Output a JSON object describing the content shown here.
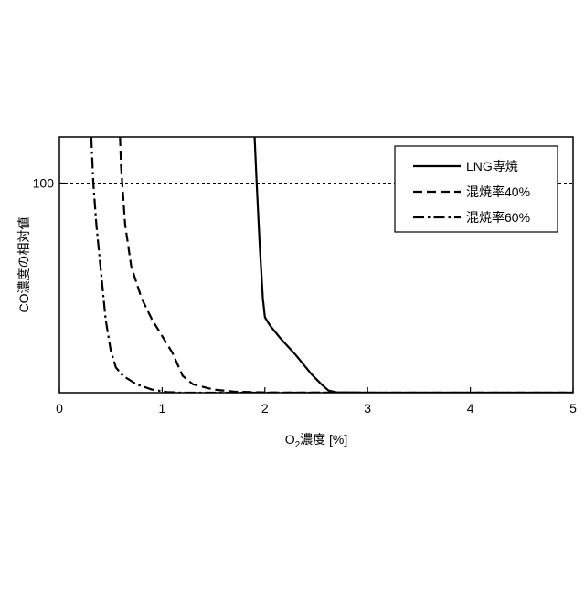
{
  "chart_data": {
    "type": "line",
    "title": "",
    "xlabel": "O₂濃度 [%]",
    "xlabel_parts": {
      "main": "O",
      "sub": "2",
      "rest": "濃度 [%]"
    },
    "ylabel": "CO濃度の相対値",
    "xlim": [
      0,
      5
    ],
    "ylim": [
      0,
      122
    ],
    "x_ticks": [
      0,
      1,
      2,
      3,
      4,
      5
    ],
    "y_ticks": [
      100
    ],
    "reference_line": {
      "y": 100,
      "style": "dotted"
    },
    "grid": false,
    "legend_position": "top-right",
    "series": [
      {
        "name": "LNG専焼",
        "line_style": "solid",
        "points": [
          [
            1.9,
            122
          ],
          [
            1.92,
            100
          ],
          [
            1.95,
            70
          ],
          [
            1.98,
            45
          ],
          [
            2.0,
            36
          ],
          [
            2.05,
            32
          ],
          [
            2.15,
            26
          ],
          [
            2.3,
            18
          ],
          [
            2.45,
            9
          ],
          [
            2.55,
            4
          ],
          [
            2.62,
            1
          ],
          [
            2.7,
            0.2
          ],
          [
            3.0,
            0
          ],
          [
            4.0,
            0
          ],
          [
            5.0,
            0
          ]
        ]
      },
      {
        "name": "混焼率40%",
        "line_style": "dashed",
        "points": [
          [
            0.59,
            122
          ],
          [
            0.6,
            108
          ],
          [
            0.64,
            80
          ],
          [
            0.7,
            60
          ],
          [
            0.8,
            45
          ],
          [
            0.9,
            35
          ],
          [
            1.0,
            27
          ],
          [
            1.1,
            19
          ],
          [
            1.2,
            8
          ],
          [
            1.3,
            4
          ],
          [
            1.5,
            1.5
          ],
          [
            1.7,
            0.5
          ],
          [
            2.0,
            0.1
          ],
          [
            3.0,
            0
          ],
          [
            5.0,
            0
          ]
        ]
      },
      {
        "name": "混焼率60%",
        "line_style": "dashdot",
        "points": [
          [
            0.31,
            122
          ],
          [
            0.33,
            100
          ],
          [
            0.36,
            80
          ],
          [
            0.4,
            60
          ],
          [
            0.45,
            35
          ],
          [
            0.5,
            20
          ],
          [
            0.55,
            12
          ],
          [
            0.62,
            8
          ],
          [
            0.75,
            4
          ],
          [
            0.9,
            1.5
          ],
          [
            1.05,
            0.3
          ],
          [
            1.2,
            0
          ],
          [
            2.0,
            0
          ],
          [
            5.0,
            0
          ]
        ]
      }
    ]
  }
}
